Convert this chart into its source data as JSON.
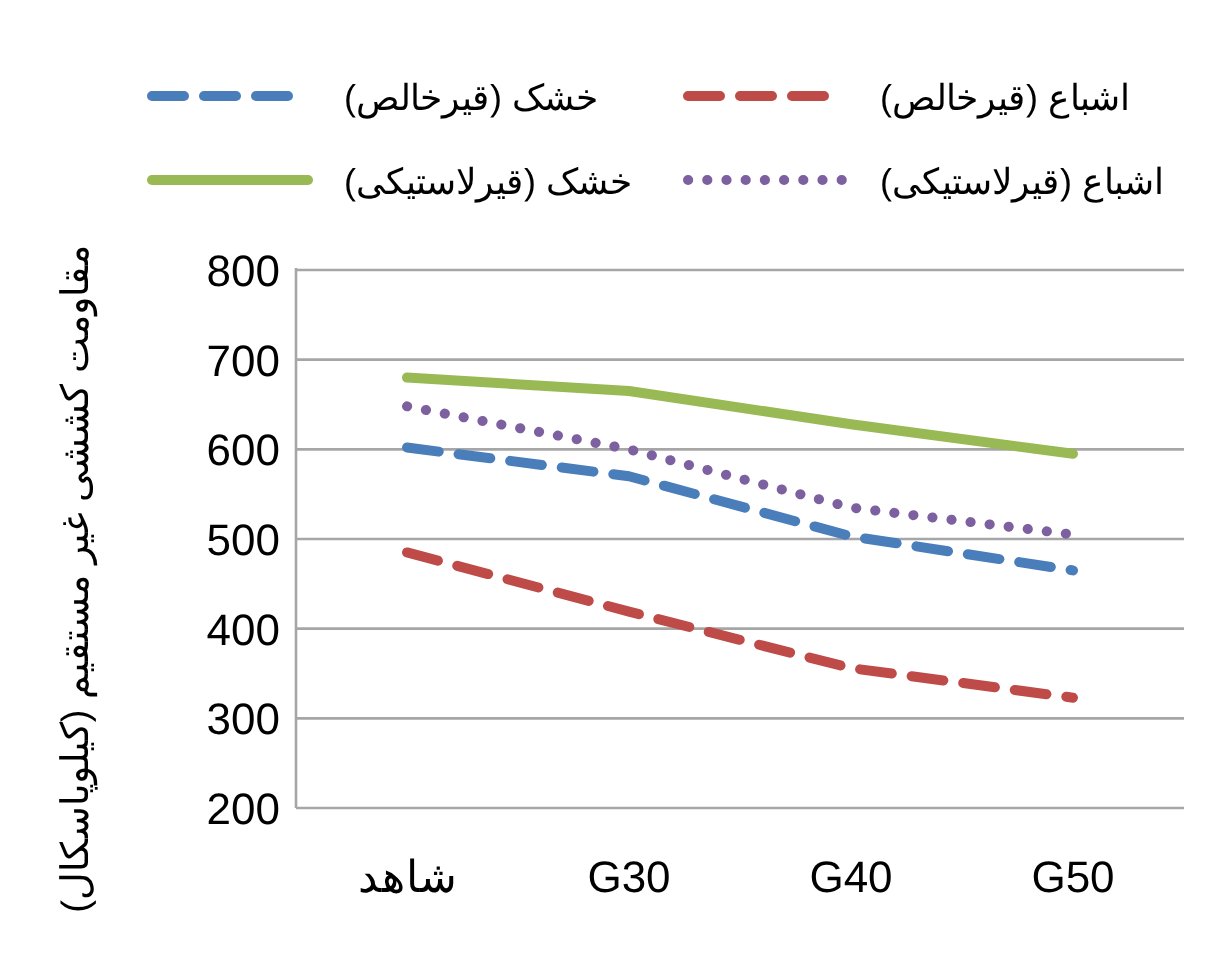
{
  "chart_data": {
    "type": "line",
    "ylabel": "مقاومت کششی غیر مستقیم (کیلوپاسکال)",
    "categories": [
      "شاهد",
      "G30",
      "G40",
      "G50"
    ],
    "series": [
      {
        "name": "خشک (قیرخالص)",
        "color": "#4a7ebb",
        "line_style": "dashed",
        "values": [
          602,
          570,
          503,
          465
        ]
      },
      {
        "name": "اشباع (قیرخالص)",
        "color": "#be4b48",
        "line_style": "dashed",
        "values": [
          485,
          419,
          356,
          323
        ]
      },
      {
        "name": "خشک (قیرلاستیکی)",
        "color": "#98b954",
        "line_style": "solid",
        "values": [
          680,
          665,
          628,
          595
        ]
      },
      {
        "name": "اشباع (قیرلاستیکی)",
        "color": "#7d60a0",
        "line_style": "dotted",
        "values": [
          648,
          600,
          535,
          505
        ]
      }
    ],
    "ylim": [
      200,
      800
    ],
    "yticks": [
      200,
      300,
      400,
      500,
      600,
      700,
      800
    ],
    "grid": "y",
    "legend": "top",
    "marker": "none"
  }
}
